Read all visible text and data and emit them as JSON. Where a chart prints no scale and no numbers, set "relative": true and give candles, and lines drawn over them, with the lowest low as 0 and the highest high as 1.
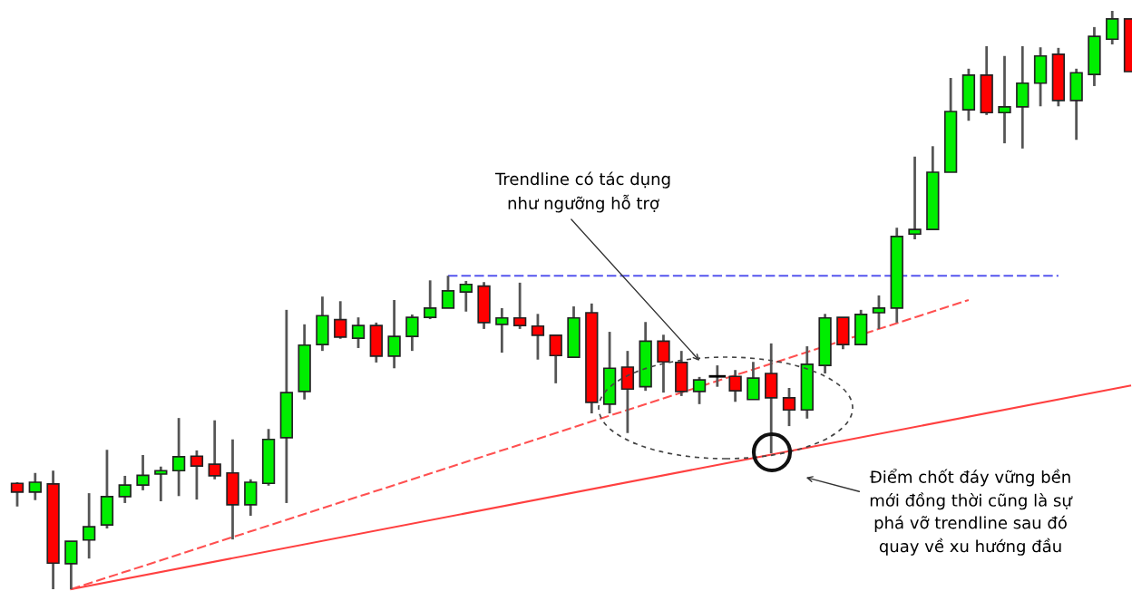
{
  "chart_data": {
    "type": "candlestick",
    "relative": true,
    "categories": [
      null,
      null,
      null,
      null,
      null,
      null,
      null,
      null,
      null,
      null,
      null,
      null,
      null,
      null,
      null,
      null,
      null,
      null,
      null,
      null,
      null,
      null,
      null,
      null,
      null,
      null,
      null,
      null,
      null,
      null,
      null,
      null,
      null,
      null,
      null,
      null,
      null,
      null,
      null,
      null,
      null,
      null,
      null,
      null,
      null,
      null,
      null,
      null,
      null,
      null,
      null,
      null,
      null,
      null,
      null,
      null,
      null,
      null,
      null,
      null,
      null,
      null,
      null
    ],
    "ohlc": [
      [
        0.183,
        0.185,
        0.143,
        0.168
      ],
      [
        0.168,
        0.201,
        0.154,
        0.185
      ],
      [
        0.182,
        0.205,
        0.0,
        0.045
      ],
      [
        0.044,
        0.083,
        0.0,
        0.083
      ],
      [
        0.085,
        0.166,
        0.053,
        0.108
      ],
      [
        0.111,
        0.241,
        0.105,
        0.16
      ],
      [
        0.16,
        0.196,
        0.149,
        0.18
      ],
      [
        0.18,
        0.232,
        0.171,
        0.197
      ],
      [
        0.199,
        0.212,
        0.152,
        0.205
      ],
      [
        0.205,
        0.296,
        0.161,
        0.229
      ],
      [
        0.23,
        0.24,
        0.155,
        0.213
      ],
      [
        0.216,
        0.292,
        0.19,
        0.196
      ],
      [
        0.201,
        0.259,
        0.086,
        0.146
      ],
      [
        0.146,
        0.19,
        0.127,
        0.185
      ],
      [
        0.183,
        0.277,
        0.179,
        0.259
      ],
      [
        0.262,
        0.483,
        0.149,
        0.34
      ],
      [
        0.342,
        0.458,
        0.328,
        0.422
      ],
      [
        0.423,
        0.506,
        0.412,
        0.473
      ],
      [
        0.466,
        0.498,
        0.433,
        0.436
      ],
      [
        0.434,
        0.47,
        0.417,
        0.456
      ],
      [
        0.456,
        0.461,
        0.392,
        0.403
      ],
      [
        0.403,
        0.5,
        0.382,
        0.437
      ],
      [
        0.437,
        0.475,
        0.412,
        0.47
      ],
      [
        0.47,
        0.534,
        0.467,
        0.486
      ],
      [
        0.486,
        0.542,
        0.486,
        0.516
      ],
      [
        0.514,
        0.533,
        0.48,
        0.527
      ],
      [
        0.524,
        0.531,
        0.45,
        0.461
      ],
      [
        0.458,
        0.486,
        0.409,
        0.469
      ],
      [
        0.469,
        0.53,
        0.45,
        0.456
      ],
      [
        0.455,
        0.476,
        0.397,
        0.439
      ],
      [
        0.439,
        0.439,
        0.356,
        0.404
      ],
      [
        0.401,
        0.489,
        0.401,
        0.469
      ],
      [
        0.478,
        0.494,
        0.304,
        0.323
      ],
      [
        0.32,
        0.445,
        0.304,
        0.382
      ],
      [
        0.384,
        0.412,
        0.27,
        0.346
      ],
      [
        0.35,
        0.462,
        0.343,
        0.429
      ],
      [
        0.429,
        0.44,
        0.34,
        0.393
      ],
      [
        0.392,
        0.412,
        0.334,
        0.342
      ],
      [
        0.342,
        0.367,
        0.32,
        0.362
      ],
      [
        0.368,
        0.387,
        0.35,
        0.368
      ],
      [
        0.368,
        0.379,
        0.324,
        0.343
      ],
      [
        0.328,
        0.393,
        0.328,
        0.365
      ],
      [
        0.373,
        0.425,
        0.235,
        0.331
      ],
      [
        0.331,
        0.348,
        0.282,
        0.31
      ],
      [
        0.31,
        0.42,
        0.295,
        0.389
      ],
      [
        0.387,
        0.476,
        0.373,
        0.469
      ],
      [
        0.47,
        0.47,
        0.415,
        0.423
      ],
      [
        0.423,
        0.483,
        0.423,
        0.475
      ],
      [
        0.478,
        0.508,
        0.45,
        0.486
      ],
      [
        0.486,
        0.625,
        0.461,
        0.61
      ],
      [
        0.614,
        0.748,
        0.605,
        0.622
      ],
      [
        0.622,
        0.766,
        0.622,
        0.721
      ],
      [
        0.721,
        0.884,
        0.721,
        0.826
      ],
      [
        0.829,
        0.9,
        0.81,
        0.889
      ],
      [
        0.889,
        0.939,
        0.82,
        0.824
      ],
      [
        0.824,
        0.922,
        0.771,
        0.834
      ],
      [
        0.834,
        0.939,
        0.762,
        0.875
      ],
      [
        0.875,
        0.937,
        0.835,
        0.922
      ],
      [
        0.925,
        0.936,
        0.835,
        0.845
      ],
      [
        0.845,
        0.9,
        0.777,
        0.893
      ],
      [
        0.89,
        0.972,
        0.87,
        0.956
      ],
      [
        0.951,
        1.0,
        0.942,
        0.986
      ],
      [
        0.986,
        0.986,
        0.895,
        0.895
      ]
    ],
    "colors": [
      "#ff0000",
      "#00ee00",
      "#ff0000",
      "#00ee00",
      "#00ee00",
      "#00ee00",
      "#00ee00",
      "#00ee00",
      "#00ee00",
      "#00ee00",
      "#ff0000",
      "#ff0000",
      "#ff0000",
      "#00ee00",
      "#00ee00",
      "#00ee00",
      "#00ee00",
      "#00ee00",
      "#ff0000",
      "#00ee00",
      "#ff0000",
      "#00ee00",
      "#00ee00",
      "#00ee00",
      "#00ee00",
      "#00ee00",
      "#ff0000",
      "#00ee00",
      "#ff0000",
      "#ff0000",
      "#ff0000",
      "#00ee00",
      "#ff0000",
      "#00ee00",
      "#ff0000",
      "#00ee00",
      "#ff0000",
      "#ff0000",
      "#00ee00",
      "#000000",
      "#ff0000",
      "#00ee00",
      "#ff0000",
      "#ff0000",
      "#00ee00",
      "#00ee00",
      "#ff0000",
      "#00ee00",
      "#00ee00",
      "#00ee00",
      "#00ee00",
      "#00ee00",
      "#00ee00",
      "#00ee00",
      "#ff0000",
      "#00ee00",
      "#00ee00",
      "#00ee00",
      "#ff0000",
      "#00ee00",
      "#00ee00",
      "#00ee00",
      "#ff0000"
    ],
    "series": [
      {
        "type": "line",
        "values": [
          null,
          null,
          null,
          0.0,
          null,
          null,
          null,
          null,
          null,
          null,
          null,
          null,
          null,
          null,
          null,
          null,
          null,
          null,
          null,
          null,
          null,
          null,
          null,
          null,
          null,
          null,
          null,
          null,
          null,
          null,
          null,
          null,
          null,
          null,
          null,
          null,
          null,
          null,
          null,
          null,
          null,
          null,
          null,
          null,
          null,
          null,
          null,
          null,
          null,
          null,
          null,
          null,
          null,
          null,
          null,
          null,
          null,
          null,
          null,
          null,
          null,
          null,
          0.352
        ],
        "color": "#ff4040",
        "line_style": "solid"
      },
      {
        "type": "line",
        "values": [
          null,
          null,
          null,
          0.0,
          null,
          null,
          null,
          null,
          null,
          null,
          null,
          null,
          null,
          null,
          null,
          null,
          null,
          null,
          null,
          null,
          null,
          null,
          null,
          null,
          null,
          null,
          null,
          null,
          null,
          null,
          null,
          null,
          null,
          null,
          null,
          null,
          null,
          null,
          null,
          null,
          null,
          null,
          null,
          null,
          null,
          null,
          null,
          null,
          null,
          null,
          null,
          null,
          null,
          0.5,
          null,
          null,
          null,
          null,
          null,
          null,
          null,
          null,
          null
        ],
        "color": "#ff5050",
        "line_style": "dashed"
      },
      {
        "type": "line",
        "values": [
          null,
          null,
          null,
          null,
          null,
          null,
          null,
          null,
          null,
          null,
          null,
          null,
          null,
          null,
          null,
          null,
          null,
          null,
          null,
          null,
          null,
          null,
          null,
          null,
          0.542,
          null,
          null,
          null,
          null,
          null,
          null,
          null,
          null,
          null,
          null,
          null,
          null,
          null,
          null,
          null,
          null,
          null,
          null,
          null,
          null,
          null,
          null,
          null,
          null,
          null,
          null,
          null,
          null,
          null,
          null,
          null,
          null,
          null,
          0.542,
          null,
          null,
          null,
          null
        ],
        "color": "#5555ee",
        "line_style": "dashed"
      }
    ],
    "annotations": [
      "Trendline có tác dụng\nnhư ngưỡng hỗ trợ",
      "Điểm chốt đáy vững bền\nmới đồng thời cũng là sự\nphá vỡ trendline sau đó\nquay về xu hướng đầu"
    ]
  }
}
